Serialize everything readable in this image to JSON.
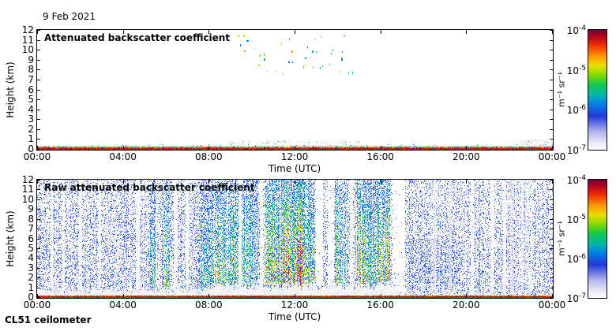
{
  "header": {
    "date": "9 Feb 2021"
  },
  "footer": {
    "instrument": "CL51 ceilometer"
  },
  "colormap_stops": [
    [
      0.0,
      "#ffffff"
    ],
    [
      0.06,
      "#e8e8f8"
    ],
    [
      0.15,
      "#b0b6ee"
    ],
    [
      0.28,
      "#2438d8"
    ],
    [
      0.38,
      "#0080e8"
    ],
    [
      0.46,
      "#00b8a8"
    ],
    [
      0.54,
      "#10c850"
    ],
    [
      0.62,
      "#7fd800"
    ],
    [
      0.7,
      "#e8e000"
    ],
    [
      0.78,
      "#ff9800"
    ],
    [
      0.87,
      "#f03000"
    ],
    [
      0.95,
      "#b00020"
    ],
    [
      1.0,
      "#700038"
    ]
  ],
  "chart_data": [
    {
      "type": "heatmap",
      "title": "Attenuated backscatter coefficient",
      "xlabel": "Time (UTC)",
      "ylabel": "Height (km)",
      "x_range_hours": [
        0,
        24
      ],
      "y_range_km": [
        0,
        12
      ],
      "x_tick_hours": [
        0,
        4,
        8,
        12,
        16,
        20,
        24
      ],
      "x_ticks": [
        "00:00",
        "04:00",
        "08:00",
        "12:00",
        "16:00",
        "20:00",
        "00:00"
      ],
      "y_ticks": [
        0,
        1,
        2,
        3,
        4,
        5,
        6,
        7,
        8,
        9,
        10,
        11,
        12
      ],
      "colorbar": {
        "scale": "log",
        "min": 1e-07,
        "max": 0.0001,
        "unit": "m⁻¹ sr⁻¹",
        "ticks": [
          {
            "mantissa": "10",
            "exponent": "-4"
          },
          {
            "mantissa": "10",
            "exponent": "-5"
          },
          {
            "mantissa": "10",
            "exponent": "-6"
          },
          {
            "mantissa": "10",
            "exponent": "-7"
          }
        ]
      },
      "features": {
        "surface_band": {
          "height_km": [
            0,
            0.3
          ],
          "style": "strong multicolor return with dark red base line"
        },
        "near_surface_gray_speckle": {
          "height_km": [
            0.3,
            0.9
          ],
          "denser_hours": [
            [
              9,
              15
            ],
            [
              20,
              24
            ]
          ]
        },
        "high_altitude_specks": {
          "hours": [
            9.3,
            14.7
          ],
          "height_km": [
            7.4,
            11.6
          ],
          "count": 42,
          "colors": "yellow, green, orange, cyan, blue isolated cloud/noise pixels"
        }
      }
    },
    {
      "type": "heatmap",
      "title": "Raw attenuated backscatter coefficient",
      "xlabel": "Time (UTC)",
      "ylabel": "Height (km)",
      "x_range_hours": [
        0,
        24
      ],
      "y_range_km": [
        0,
        12
      ],
      "x_tick_hours": [
        0,
        4,
        8,
        12,
        16,
        20,
        24
      ],
      "x_ticks": [
        "00:00",
        "04:00",
        "08:00",
        "12:00",
        "16:00",
        "20:00",
        "00:00"
      ],
      "y_ticks": [
        0,
        1,
        2,
        3,
        4,
        5,
        6,
        7,
        8,
        9,
        10,
        11,
        12
      ],
      "colorbar": {
        "scale": "log",
        "min": 1e-07,
        "max": 0.0001,
        "unit": "m⁻¹ sr⁻¹",
        "ticks": [
          {
            "mantissa": "10",
            "exponent": "-4"
          },
          {
            "mantissa": "10",
            "exponent": "-5"
          },
          {
            "mantissa": "10",
            "exponent": "-6"
          },
          {
            "mantissa": "10",
            "exponent": "-7"
          }
        ]
      },
      "features": {
        "background_speckle": {
          "color": "blue",
          "coverage": 0.38,
          "extent_km": [
            0,
            12
          ]
        },
        "clear_low_zone": {
          "height_km_top": 1.4,
          "hours": [
            0,
            16.7
          ],
          "style": "pale gray/white zone below noise"
        },
        "streak_groups": [
          {
            "hours": [
              5.25,
              5.5
            ],
            "intensity": 0.45
          },
          {
            "hours": [
              5.9,
              6.15
            ],
            "intensity": 0.5
          },
          {
            "hours": [
              7.6,
              8.2
            ],
            "intensity": 0.35
          },
          {
            "hours": [
              8.25,
              9.35
            ],
            "intensity": 0.5
          },
          {
            "hours": [
              9.55,
              10.3
            ],
            "intensity": 0.45
          },
          {
            "hours": [
              10.6,
              11.3
            ],
            "intensity": 0.58
          },
          {
            "hours": [
              11.35,
              12.55
            ],
            "intensity": 0.8
          },
          {
            "hours": [
              12.55,
              12.95
            ],
            "intensity": 0.62
          },
          {
            "hours": [
              13.85,
              14.5
            ],
            "intensity": 0.5
          },
          {
            "hours": [
              14.8,
              16.45
            ],
            "intensity": 0.65
          }
        ],
        "white_gaps": [
          [
            0.6,
            0.72
          ],
          [
            1.15,
            1.28
          ],
          [
            1.95,
            2.08
          ],
          [
            2.85,
            2.98
          ],
          [
            4.6,
            4.75
          ],
          [
            6.35,
            6.55
          ],
          [
            6.9,
            7.05
          ],
          [
            9.38,
            9.52
          ],
          [
            10.35,
            10.52
          ],
          [
            12.98,
            13.3
          ],
          [
            13.52,
            13.82
          ],
          [
            14.55,
            14.72
          ],
          [
            16.55,
            17.15
          ],
          [
            20.2,
            20.35
          ],
          [
            21.1,
            21.3
          ],
          [
            21.7,
            21.85
          ]
        ],
        "pale_columns": [
          [
            18.3,
            19.3
          ],
          [
            21.9,
            22.9
          ]
        ],
        "dense_patch": {
          "hours": [
            17.3,
            19.8
          ],
          "height_km": [
            1.5,
            6
          ]
        },
        "surface_band": {
          "height_km": [
            0,
            0.25
          ],
          "style": "strong multicolor return with dark red base line"
        }
      }
    }
  ]
}
